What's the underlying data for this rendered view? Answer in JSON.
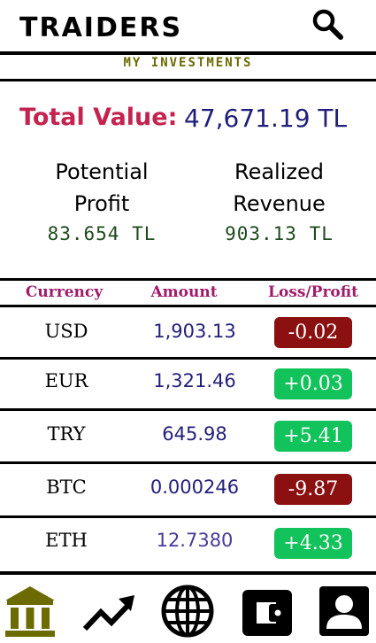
{
  "header": {
    "brand": "TRAIDERS",
    "search_icon": "search-icon"
  },
  "subtitle": "MY INVESTMENTS",
  "summary": {
    "total_label": "Total Value:",
    "total_value": "47,671.19 TL",
    "potential_label_line1": "Potential",
    "potential_label_line2": "Profit",
    "potential_value": "83.654 TL",
    "realized_label_line1": "Realized",
    "realized_label_line2": "Revenue",
    "realized_value": "903.13 TL"
  },
  "table": {
    "headers": [
      "Currency",
      "Amount",
      "Loss/Profit"
    ],
    "rows": [
      {
        "currency": "USD",
        "amount": "1,903.13",
        "change": "-0.02",
        "status": "negative"
      },
      {
        "currency": "EUR",
        "amount": "1,321.46",
        "change": "+0.03",
        "status": "positive"
      },
      {
        "currency": "TRY",
        "amount": "645.98",
        "change": "+5.41",
        "status": "positive"
      },
      {
        "currency": "BTC",
        "amount": "0.000246",
        "change": "-9.87",
        "status": "negative"
      },
      {
        "currency": "ETH",
        "amount": "12.7380",
        "change": "+4.33",
        "status": "positive"
      }
    ]
  },
  "colors": {
    "accent_red": "#c4234f",
    "negative": "#8b1010",
    "positive": "#12c25a",
    "olive": "#6b6b00",
    "navy": "#1f1f7a"
  },
  "nav": {
    "items": [
      "bank-icon",
      "trend-icon",
      "globe-icon",
      "wallet-icon",
      "account-icon"
    ]
  }
}
